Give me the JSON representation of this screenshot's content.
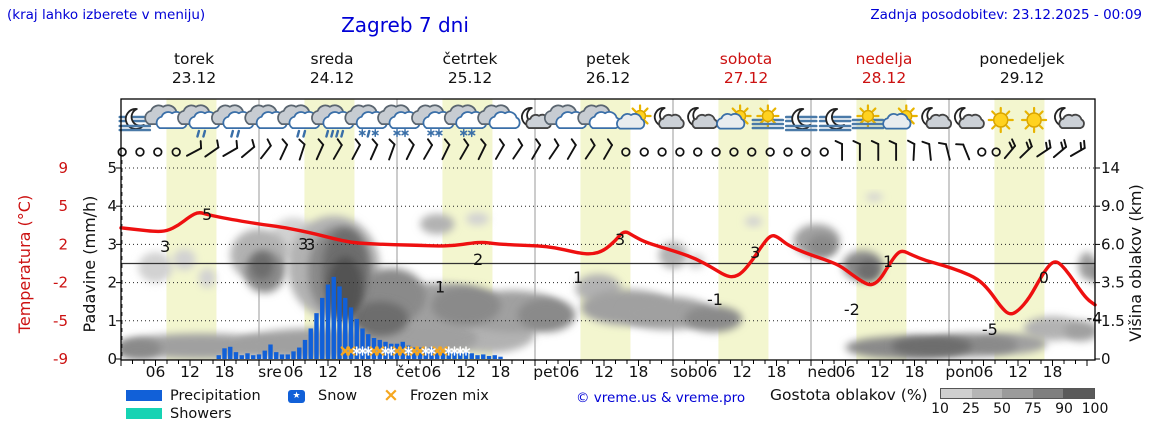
{
  "header": {
    "hint": "(kraj lahko izberete v meniju)",
    "title": "Zagreb 7 dni",
    "updated": "Zadnja posodobitev: 23.12.2025 - 00:09"
  },
  "days": [
    {
      "name": "torek",
      "date": "23.12",
      "red": false
    },
    {
      "name": "sreda",
      "date": "24.12",
      "red": false
    },
    {
      "name": "četrtek",
      "date": "25.12",
      "red": false
    },
    {
      "name": "petek",
      "date": "26.12",
      "red": false
    },
    {
      "name": "sobota",
      "date": "27.12",
      "red": true
    },
    {
      "name": "nedelja",
      "date": "28.12",
      "red": true
    },
    {
      "name": "ponedeljek",
      "date": "29.12",
      "red": false
    }
  ],
  "axes": {
    "temp_label": "Temperatura (°C)",
    "temp_ticks": [
      "9",
      "5",
      "2",
      "-2",
      "-5",
      "-9"
    ],
    "precip_label": "Padavine (mm/h)",
    "precip_ticks": [
      "5",
      "4",
      "3",
      "2",
      "1",
      "0"
    ],
    "cloud_label": "Višina oblakov (km)",
    "cloud_ticks": [
      "14",
      "9.0",
      "6.0",
      "3.5",
      "1.5",
      "0"
    ],
    "time_ticks": [
      "06",
      "12",
      "18"
    ],
    "day_abbrevs": [
      "sre",
      "čet",
      "pet",
      "sob",
      "ned",
      "pon"
    ]
  },
  "legend": {
    "precipitation": "Precipitation",
    "snow": "Snow",
    "snow_star": "★",
    "frozen_glyph": "×",
    "frozen_mix": "Frozen mix",
    "showers": "Showers",
    "credit": "© vreme.us & vreme.pro",
    "cloud_density_label": "Gostota oblakov (%)",
    "density_ticks": [
      "10",
      "25",
      "50",
      "75",
      "90",
      "100"
    ],
    "density_colors": [
      "#cfcfcf",
      "#b5b5b5",
      "#9b9b9b",
      "#7f7f7f",
      "#5a5a5a"
    ]
  },
  "colors": {
    "blue_text": "#0000d6",
    "red_text": "#cc1111",
    "temp_line": "#ee1010",
    "precip_bar": "#1160d8",
    "showers": "#16d3b3",
    "frozen": "#f5a720",
    "daylight_band": "#f3f6cf",
    "grid": "#999999"
  },
  "chart_data": {
    "type": "line",
    "title": "Zagreb 7 dni",
    "x_axis": {
      "unit": "hours from 23.12 00:00",
      "span_hours": 169.4,
      "labeled_hours": [
        6,
        12,
        18
      ]
    },
    "daylight": {
      "start_hour": 7.9,
      "end_hour": 16.6
    },
    "y_temperature": {
      "label": "Temperatura (°C)",
      "ticks": [
        9,
        5,
        2,
        -2,
        -5,
        -9
      ]
    },
    "y_precip": {
      "label": "Padavine (mm/h)",
      "ticks": [
        5,
        4,
        3,
        2,
        1,
        0
      ],
      "ylim": [
        0,
        5
      ]
    },
    "y_cloud_height": {
      "label": "Višina oblakov (km)",
      "ticks": [
        14,
        9,
        6,
        3.5,
        1.5,
        0
      ]
    },
    "temperature_c": [
      [
        0,
        3.3
      ],
      [
        3,
        3.15
      ],
      [
        6,
        3.0
      ],
      [
        8,
        3.05
      ],
      [
        10,
        3.5
      ],
      [
        12,
        4.2
      ],
      [
        13.5,
        4.55
      ],
      [
        15,
        4.35
      ],
      [
        17,
        4.15
      ],
      [
        20,
        3.9
      ],
      [
        24,
        3.6
      ],
      [
        28,
        3.35
      ],
      [
        31,
        3.1
      ],
      [
        34,
        2.8
      ],
      [
        37,
        2.45
      ],
      [
        40,
        2.15
      ],
      [
        43,
        2.05
      ],
      [
        46,
        2.0
      ],
      [
        49,
        1.95
      ],
      [
        52,
        1.9
      ],
      [
        55,
        1.82
      ],
      [
        58,
        1.88
      ],
      [
        61,
        2.1
      ],
      [
        63,
        2.18
      ],
      [
        65,
        2.05
      ],
      [
        68,
        1.95
      ],
      [
        71,
        1.88
      ],
      [
        74,
        1.8
      ],
      [
        77,
        1.45
      ],
      [
        80,
        1.05
      ],
      [
        82,
        0.98
      ],
      [
        84,
        1.35
      ],
      [
        86,
        2.3
      ],
      [
        87.5,
        3.1
      ],
      [
        89,
        2.7
      ],
      [
        91,
        2.2
      ],
      [
        94,
        1.7
      ],
      [
        97,
        1.15
      ],
      [
        100,
        0.5
      ],
      [
        103,
        -0.5
      ],
      [
        105,
        -1.25
      ],
      [
        106.5,
        -1.45
      ],
      [
        108,
        -1.0
      ],
      [
        110,
        0.5
      ],
      [
        111.5,
        1.9
      ],
      [
        113,
        2.75
      ],
      [
        114.2,
        2.6
      ],
      [
        116,
        1.9
      ],
      [
        119,
        1.1
      ],
      [
        122,
        0.5
      ],
      [
        125,
        -0.2
      ],
      [
        127,
        -1.1
      ],
      [
        129,
        -1.95
      ],
      [
        130.5,
        -2.25
      ],
      [
        132,
        -1.7
      ],
      [
        133.5,
        -0.2
      ],
      [
        135,
        1.1
      ],
      [
        136,
        1.35
      ],
      [
        137.5,
        0.9
      ],
      [
        140,
        0.3
      ],
      [
        143,
        -0.2
      ],
      [
        146,
        -0.8
      ],
      [
        149,
        -1.6
      ],
      [
        151,
        -2.6
      ],
      [
        153,
        -3.9
      ],
      [
        154.5,
        -4.55
      ],
      [
        156,
        -4.25
      ],
      [
        158,
        -3.2
      ],
      [
        160,
        -1.4
      ],
      [
        161.5,
        -0.1
      ],
      [
        162.5,
        0.25
      ],
      [
        163.5,
        -0.1
      ],
      [
        165,
        -1.2
      ],
      [
        166.5,
        -2.4
      ],
      [
        168,
        -3.3
      ],
      [
        169.4,
        -3.75
      ]
    ],
    "temperature_labels": [
      {
        "t": 7.7,
        "v": 1.75,
        "text": "3"
      },
      {
        "t": 15,
        "v": 4.3,
        "text": "5"
      },
      {
        "t": 31.7,
        "v": 2.0,
        "text": "3"
      },
      {
        "t": 32.9,
        "v": 1.95,
        "text": "3"
      },
      {
        "t": 55.5,
        "v": -2.4,
        "text": "1"
      },
      {
        "t": 62.1,
        "v": 0.37,
        "text": "2"
      },
      {
        "t": 79.5,
        "v": -1.5,
        "text": "1"
      },
      {
        "t": 86.8,
        "v": 2.35,
        "text": "3"
      },
      {
        "t": 103.3,
        "v": -3.37,
        "text": "-1"
      },
      {
        "t": 110.3,
        "v": 1.1,
        "text": "3"
      },
      {
        "t": 127.1,
        "v": -4.15,
        "text": "-2"
      },
      {
        "t": 133.4,
        "v": 0.15,
        "text": "1"
      },
      {
        "t": 151.1,
        "v": -5.96,
        "text": "-5"
      },
      {
        "t": 160.5,
        "v": -1.5,
        "text": "0"
      },
      {
        "t": 169.3,
        "v": -4.8,
        "text": "-4"
      }
    ],
    "precipitation_mm_h": [
      [
        17,
        0.1
      ],
      [
        18,
        0.28
      ],
      [
        19,
        0.32
      ],
      [
        20,
        0.18
      ],
      [
        21,
        0.1
      ],
      [
        22,
        0.15
      ],
      [
        23,
        0.1
      ],
      [
        24,
        0.12
      ],
      [
        25,
        0.22
      ],
      [
        26,
        0.38
      ],
      [
        27,
        0.18
      ],
      [
        28,
        0.12
      ],
      [
        29,
        0.12
      ],
      [
        30,
        0.2
      ],
      [
        31,
        0.3
      ],
      [
        32,
        0.5
      ],
      [
        33,
        0.8
      ],
      [
        34,
        1.2
      ],
      [
        35,
        1.6
      ],
      [
        36,
        1.95
      ],
      [
        37,
        2.15
      ],
      [
        38,
        1.9
      ],
      [
        39,
        1.6
      ],
      [
        40,
        1.35
      ],
      [
        41,
        1.05
      ],
      [
        42,
        0.8
      ],
      [
        43,
        0.65
      ],
      [
        44,
        0.55
      ],
      [
        45,
        0.5
      ],
      [
        46,
        0.45
      ],
      [
        47,
        0.4
      ],
      [
        48,
        0.4
      ],
      [
        49,
        0.45
      ],
      [
        50,
        0.35
      ],
      [
        51,
        0.3
      ],
      [
        52,
        0.3
      ],
      [
        53,
        0.25
      ],
      [
        54,
        0.3
      ],
      [
        55,
        0.25
      ],
      [
        56,
        0.2
      ],
      [
        57,
        0.25
      ],
      [
        58,
        0.2
      ],
      [
        59,
        0.15
      ],
      [
        60,
        0.2
      ],
      [
        61,
        0.15
      ],
      [
        62,
        0.1
      ],
      [
        63,
        0.12
      ],
      [
        64,
        0.08
      ],
      [
        65,
        0.1
      ],
      [
        66,
        0.06
      ]
    ],
    "frozen_mix_hours": [
      39,
      40,
      44,
      45,
      48,
      49,
      51,
      52,
      55,
      56
    ],
    "snow_hours": [
      41,
      42,
      43,
      46,
      47,
      50,
      53,
      54,
      57,
      58,
      59,
      60
    ],
    "wind": [
      [
        0.2,
        null,
        0
      ],
      [
        3.3,
        null,
        0
      ],
      [
        6.4,
        null,
        0
      ],
      [
        9.6,
        null,
        0
      ],
      [
        12.7,
        62,
        1
      ],
      [
        15.8,
        55,
        1
      ],
      [
        19,
        60,
        1
      ],
      [
        22.1,
        50,
        1
      ],
      [
        25.2,
        38,
        1
      ],
      [
        28.3,
        25,
        1
      ],
      [
        31.5,
        18,
        1
      ],
      [
        34.6,
        24,
        1
      ],
      [
        37.7,
        30,
        1
      ],
      [
        40.9,
        28,
        1
      ],
      [
        44,
        24,
        1
      ],
      [
        47.1,
        20,
        1
      ],
      [
        50.3,
        26,
        1
      ],
      [
        53.4,
        30,
        1
      ],
      [
        56.5,
        26,
        1
      ],
      [
        59.7,
        30,
        1
      ],
      [
        62.8,
        26,
        1
      ],
      [
        65.9,
        30,
        1
      ],
      [
        69,
        34,
        1
      ],
      [
        72.2,
        30,
        1
      ],
      [
        75.3,
        34,
        1
      ],
      [
        78.4,
        30,
        1
      ],
      [
        81.6,
        34,
        1
      ],
      [
        84.7,
        30,
        1
      ],
      [
        87.8,
        null,
        0
      ],
      [
        91,
        null,
        0
      ],
      [
        94.1,
        null,
        0
      ],
      [
        97.2,
        null,
        0
      ],
      [
        100.3,
        null,
        0
      ],
      [
        103.5,
        null,
        0
      ],
      [
        106.6,
        null,
        0
      ],
      [
        109.7,
        null,
        0
      ],
      [
        112.9,
        null,
        0
      ],
      [
        116,
        null,
        0
      ],
      [
        119.1,
        null,
        0
      ],
      [
        122.3,
        null,
        0
      ],
      [
        125.4,
        0,
        1
      ],
      [
        128.5,
        0,
        1
      ],
      [
        131.7,
        0,
        1
      ],
      [
        134.8,
        0,
        1
      ],
      [
        137.9,
        3,
        1
      ],
      [
        140.7,
        -6,
        1
      ],
      [
        143.8,
        -14,
        1
      ],
      [
        147,
        -22,
        1
      ],
      [
        149.7,
        null,
        0
      ],
      [
        152.2,
        null,
        0
      ],
      [
        154.6,
        40,
        2
      ],
      [
        157.4,
        46,
        2
      ],
      [
        160.5,
        56,
        2
      ],
      [
        163.3,
        50,
        2
      ],
      [
        166.4,
        60,
        2
      ]
    ],
    "weather_icons": [
      {
        "t": 2.4,
        "type": "moon-fog"
      },
      {
        "t": 8.2,
        "type": "clouds"
      },
      {
        "t": 13.9,
        "type": "clouds-rain"
      },
      {
        "t": 19.8,
        "type": "clouds-rain"
      },
      {
        "t": 25.6,
        "type": "clouds"
      },
      {
        "t": 31.3,
        "type": "clouds-rain"
      },
      {
        "t": 37.2,
        "type": "clouds-rain-heavy"
      },
      {
        "t": 43.0,
        "type": "clouds-sleet"
      },
      {
        "t": 48.7,
        "type": "clouds-snow"
      },
      {
        "t": 54.6,
        "type": "clouds-snow"
      },
      {
        "t": 60.3,
        "type": "clouds-snow"
      },
      {
        "t": 66.1,
        "type": "clouds"
      },
      {
        "t": 72.0,
        "type": "moon-cloud"
      },
      {
        "t": 77.7,
        "type": "clouds"
      },
      {
        "t": 83.5,
        "type": "clouds"
      },
      {
        "t": 89.4,
        "type": "sun-cloud"
      },
      {
        "t": 95.1,
        "type": "moon-cloud"
      },
      {
        "t": 100.9,
        "type": "moon-cloud"
      },
      {
        "t": 106.8,
        "type": "sun-cloud"
      },
      {
        "t": 112.5,
        "type": "sun-fog"
      },
      {
        "t": 118.3,
        "type": "moon-fog"
      },
      {
        "t": 124.2,
        "type": "moon-fog"
      },
      {
        "t": 129.9,
        "type": "sun-fog"
      },
      {
        "t": 135.7,
        "type": "sun-cloud"
      },
      {
        "t": 141.6,
        "type": "moon-cloud"
      },
      {
        "t": 147.3,
        "type": "moon-cloud"
      },
      {
        "t": 153.0,
        "type": "sun"
      },
      {
        "t": 158.8,
        "type": "sun"
      },
      {
        "t": 164.7,
        "type": "moon-cloud"
      }
    ],
    "cloud_cover_blobs": [
      {
        "t": 3,
        "km": 0.4,
        "rt": 4,
        "rkm": 0.45,
        "pct": 75
      },
      {
        "t": 14,
        "km": 0.5,
        "rt": 14,
        "rkm": 0.5,
        "pct": 60
      },
      {
        "t": 34,
        "km": 0.6,
        "rt": 14,
        "rkm": 0.6,
        "pct": 60
      },
      {
        "t": 52,
        "km": 0.8,
        "rt": 10,
        "rkm": 0.7,
        "pct": 60
      },
      {
        "t": 64,
        "km": 1.0,
        "rt": 8,
        "rkm": 0.8,
        "pct": 50
      },
      {
        "t": 6,
        "km": 4.5,
        "rt": 3,
        "rkm": 1,
        "pct": 25
      },
      {
        "t": 11,
        "km": 5,
        "rt": 2,
        "rkm": 0.7,
        "pct": 25
      },
      {
        "t": 15,
        "km": 3.8,
        "rt": 1.5,
        "rkm": 0.6,
        "pct": 25
      },
      {
        "t": 24,
        "km": 5.3,
        "rt": 5,
        "rkm": 1.8,
        "pct": 50
      },
      {
        "t": 25,
        "km": 4.2,
        "rt": 3.5,
        "rkm": 1.3,
        "pct": 75
      },
      {
        "t": 24.5,
        "km": 4.6,
        "rt": 2,
        "rkm": 0.9,
        "pct": 90
      },
      {
        "t": 30,
        "km": 6.5,
        "rt": 4,
        "rkm": 1.5,
        "pct": 25
      },
      {
        "t": 37,
        "km": 4.5,
        "rt": 8,
        "rkm": 3.2,
        "pct": 50
      },
      {
        "t": 38,
        "km": 4.2,
        "rt": 5.5,
        "rkm": 2.8,
        "pct": 75
      },
      {
        "t": 39,
        "km": 4.3,
        "rt": 4,
        "rkm": 2.6,
        "pct": 90
      },
      {
        "t": 39,
        "km": 3.2,
        "rt": 3,
        "rkm": 1.8,
        "pct": 100
      },
      {
        "t": 47,
        "km": 2.8,
        "rt": 6,
        "rkm": 1.5,
        "pct": 75
      },
      {
        "t": 45,
        "km": 1.6,
        "rt": 5,
        "rkm": 0.8,
        "pct": 90
      },
      {
        "t": 55,
        "km": 2.2,
        "rt": 9,
        "rkm": 1.2,
        "pct": 60
      },
      {
        "t": 60,
        "km": 2.3,
        "rt": 6,
        "rkm": 1,
        "pct": 75
      },
      {
        "t": 68,
        "km": 2.0,
        "rt": 9,
        "rkm": 1,
        "pct": 60
      },
      {
        "t": 74,
        "km": 1.8,
        "rt": 5,
        "rkm": 0.8,
        "pct": 75
      },
      {
        "t": 55,
        "km": 7.6,
        "rt": 3,
        "rkm": 0.8,
        "pct": 50
      },
      {
        "t": 62,
        "km": 8,
        "rt": 2,
        "rkm": 0.5,
        "pct": 25
      },
      {
        "t": 83,
        "km": 3.2,
        "rt": 4,
        "rkm": 0.8,
        "pct": 50
      },
      {
        "t": 88,
        "km": 2.2,
        "rt": 8,
        "rkm": 0.9,
        "pct": 60
      },
      {
        "t": 95,
        "km": 1.9,
        "rt": 8,
        "rkm": 0.8,
        "pct": 60
      },
      {
        "t": 103,
        "km": 1.6,
        "rt": 5,
        "rkm": 0.6,
        "pct": 75
      },
      {
        "t": 96,
        "km": 5.3,
        "rt": 2.5,
        "rkm": 0.9,
        "pct": 50
      },
      {
        "t": 100,
        "km": 4.9,
        "rt": 1.5,
        "rkm": 0.5,
        "pct": 25
      },
      {
        "t": 110,
        "km": 7.8,
        "rt": 1.5,
        "rkm": 0.4,
        "pct": 25
      },
      {
        "t": 121,
        "km": 6.3,
        "rt": 4,
        "rkm": 1.2,
        "pct": 60
      },
      {
        "t": 122,
        "km": 5.9,
        "rt": 2.5,
        "rkm": 0.8,
        "pct": 75
      },
      {
        "t": 129,
        "km": 4.6,
        "rt": 3.5,
        "rkm": 1,
        "pct": 75
      },
      {
        "t": 130,
        "km": 4.3,
        "rt": 2,
        "rkm": 0.7,
        "pct": 90
      },
      {
        "t": 136,
        "km": 0.45,
        "rt": 10,
        "rkm": 0.45,
        "pct": 75
      },
      {
        "t": 141,
        "km": 0.5,
        "rt": 7,
        "rkm": 0.4,
        "pct": 90
      },
      {
        "t": 148,
        "km": 0.55,
        "rt": 8,
        "rkm": 0.45,
        "pct": 75
      },
      {
        "t": 155,
        "km": 0.6,
        "rt": 6,
        "rkm": 0.4,
        "pct": 60
      },
      {
        "t": 131,
        "km": 10.2,
        "rt": 1.5,
        "rkm": 0.35,
        "pct": 25
      },
      {
        "t": 162,
        "km": 1.2,
        "rt": 5,
        "rkm": 0.5,
        "pct": 50
      },
      {
        "t": 167,
        "km": 1.1,
        "rt": 3,
        "rkm": 0.4,
        "pct": 60
      },
      {
        "t": 168,
        "km": 4.6,
        "rt": 1.5,
        "rkm": 0.9,
        "pct": 60
      },
      {
        "t": 169.5,
        "km": 4.2,
        "rt": 1.2,
        "rkm": 0.7,
        "pct": 75
      }
    ]
  }
}
